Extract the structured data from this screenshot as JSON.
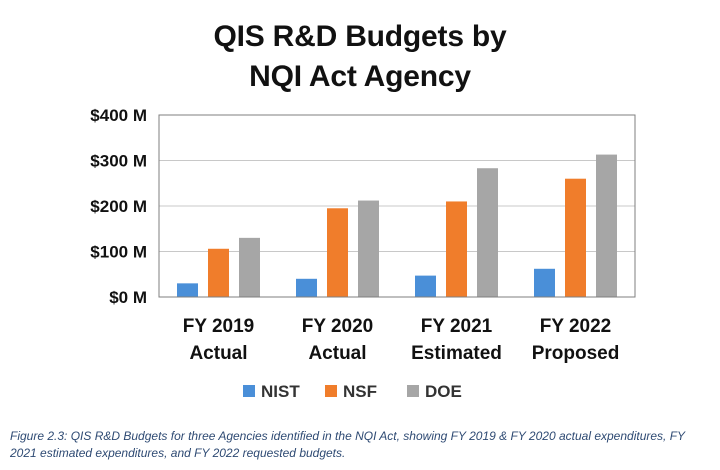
{
  "chart_data": {
    "type": "bar",
    "title_lines": [
      "QIS R&D Budgets by",
      "NQI Act Agency"
    ],
    "categories": [
      [
        "FY 2019",
        "Actual"
      ],
      [
        "FY 2020",
        "Actual"
      ],
      [
        "FY 2021",
        "Estimated"
      ],
      [
        "FY 2022",
        "Proposed"
      ]
    ],
    "series": [
      {
        "name": "NIST",
        "color": "#4a8fd8",
        "values": [
          30,
          40,
          47,
          62
        ]
      },
      {
        "name": "NSF",
        "color": "#f07d2b",
        "values": [
          106,
          195,
          210,
          260
        ]
      },
      {
        "name": "DOE",
        "color": "#a6a6a6",
        "values": [
          130,
          212,
          283,
          313
        ]
      }
    ],
    "ylim": [
      0,
      400
    ],
    "yticks": [
      0,
      100,
      200,
      300,
      400
    ],
    "ytick_labels": [
      "$0 M",
      "$100 M",
      "$200 M",
      "$300 M",
      "$400 M"
    ],
    "grid": true,
    "legend_position": "bottom"
  },
  "caption": "Figure 2.3: QIS R&D Budgets for three Agencies identified in the NQI Act, showing FY 2019 & FY 2020 actual expenditures, FY 2021 estimated expenditures, and FY 2022 requested budgets."
}
